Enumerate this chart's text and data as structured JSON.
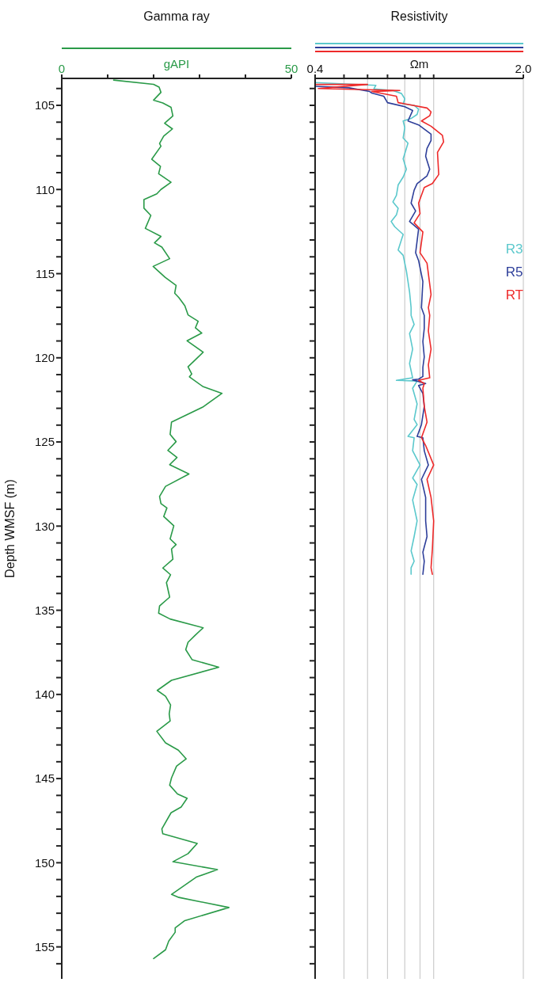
{
  "chart_data": [
    {
      "type": "line",
      "title": "Gamma ray",
      "xlabel": "gAPI",
      "ylabel": "Depth WMSF (m)",
      "orientation": "horizontal",
      "marker": "none",
      "line_style": "solid",
      "grid": false,
      "xlim": [
        0,
        50
      ],
      "xticks": [
        0,
        {
          "value": 10,
          "label": null
        },
        {
          "value": 20,
          "label": null
        },
        {
          "value": 30,
          "label": null
        },
        {
          "value": 40,
          "label": null
        },
        50
      ],
      "ylim": [
        156.9,
        103.4
      ],
      "yticks": [
        {
          "value": 104,
          "label": null
        },
        105,
        {
          "value": 106,
          "label": null
        },
        {
          "value": 107,
          "label": null
        },
        {
          "value": 108,
          "label": null
        },
        {
          "value": 109,
          "label": null
        },
        110,
        {
          "value": 111,
          "label": null
        },
        {
          "value": 112,
          "label": null
        },
        {
          "value": 113,
          "label": null
        },
        {
          "value": 114,
          "label": null
        },
        115,
        {
          "value": 116,
          "label": null
        },
        {
          "value": 117,
          "label": null
        },
        {
          "value": 118,
          "label": null
        },
        {
          "value": 119,
          "label": null
        },
        120,
        {
          "value": 121,
          "label": null
        },
        {
          "value": 122,
          "label": null
        },
        {
          "value": 123,
          "label": null
        },
        {
          "value": 124,
          "label": null
        },
        125,
        {
          "value": 126,
          "label": null
        },
        {
          "value": 127,
          "label": null
        },
        {
          "value": 128,
          "label": null
        },
        {
          "value": 129,
          "label": null
        },
        130,
        {
          "value": 131,
          "label": null
        },
        {
          "value": 132,
          "label": null
        },
        {
          "value": 133,
          "label": null
        },
        {
          "value": 134,
          "label": null
        },
        135,
        {
          "value": 136,
          "label": null
        },
        {
          "value": 137,
          "label": null
        },
        {
          "value": 138,
          "label": null
        },
        {
          "value": 139,
          "label": null
        },
        140,
        {
          "value": 141,
          "label": null
        },
        {
          "value": 142,
          "label": null
        },
        {
          "value": 143,
          "label": null
        },
        {
          "value": 144,
          "label": null
        },
        145,
        {
          "value": 146,
          "label": null
        },
        {
          "value": 147,
          "label": null
        },
        {
          "value": 148,
          "label": null
        },
        {
          "value": 149,
          "label": null
        },
        150,
        {
          "value": 151,
          "label": null
        },
        {
          "value": 152,
          "label": null
        },
        {
          "value": 153,
          "label": null
        },
        {
          "value": 154,
          "label": null
        },
        155,
        {
          "value": 156,
          "label": null
        }
      ],
      "series": [
        {
          "color": "#2a9a48",
          "x": [
            103.5,
            103.75,
            103.92,
            104.23,
            104.69,
            104.86,
            105.12,
            105.63,
            106.06,
            106.4,
            106.83,
            107.26,
            107.43,
            108.2,
            108.63,
            109.06,
            109.57,
            110.0,
            110.26,
            110.6,
            111.11,
            111.54,
            112.31,
            112.79,
            113.17,
            113.42,
            114.11,
            114.57,
            115.22,
            115.7,
            116.16,
            116.42,
            116.9,
            117.45,
            117.83,
            118.22,
            118.53,
            118.99,
            119.67,
            120.53,
            120.96,
            121.13,
            121.7,
            122.11,
            122.93,
            123.82,
            124.55,
            124.98,
            125.5,
            125.92,
            126.35,
            126.9,
            127.64,
            128.24,
            128.66,
            128.92,
            129.43,
            129.98,
            130.76,
            131.1,
            131.36,
            131.97,
            132.49,
            132.89,
            133.36,
            134.22,
            134.74,
            135.17,
            135.52,
            136.04,
            136.47,
            136.9,
            137.34,
            137.94,
            138.38,
            139.16,
            139.76,
            140.11,
            140.63,
            141.15,
            141.58,
            142.19,
            142.88,
            143.31,
            143.83,
            144.26,
            144.96,
            145.39,
            145.91,
            146.17,
            146.69,
            147.03,
            147.99,
            148.28,
            148.85,
            149.46,
            149.94,
            150.41,
            150.84,
            151.88,
            152.06,
            152.66,
            153.44,
            153.87,
            154.13,
            154.65,
            155.17,
            155.69
          ],
          "values": [
            11.3,
            20.0,
            21.2,
            21.6,
            20.0,
            22.0,
            23.8,
            24.2,
            22.4,
            24.1,
            22.2,
            21.3,
            21.6,
            19.6,
            21.5,
            21.1,
            23.8,
            21.6,
            20.7,
            17.9,
            17.9,
            19.4,
            18.2,
            21.6,
            20.2,
            21.8,
            23.5,
            19.9,
            22.5,
            24.9,
            24.6,
            25.5,
            26.8,
            27.5,
            29.7,
            29.1,
            30.5,
            27.3,
            30.8,
            27.5,
            28.3,
            27.8,
            30.7,
            34.9,
            30.7,
            23.9,
            23.6,
            24.9,
            23.1,
            25.1,
            23.5,
            27.7,
            22.6,
            21.3,
            21.6,
            22.9,
            22.2,
            24.4,
            23.6,
            24.9,
            23.9,
            24.2,
            22.0,
            23.7,
            22.8,
            23.5,
            21.3,
            21.1,
            23.6,
            30.8,
            29.1,
            27.5,
            27.0,
            28.4,
            34.2,
            23.9,
            20.8,
            22.6,
            23.7,
            23.4,
            23.6,
            20.7,
            22.6,
            25.4,
            27.1,
            25.0,
            23.9,
            23.5,
            25.2,
            27.3,
            26.0,
            23.8,
            21.8,
            22.0,
            29.5,
            27.5,
            24.2,
            33.9,
            29.4,
            23.9,
            25.5,
            36.4,
            26.8,
            24.7,
            24.7,
            23.3,
            22.6,
            20.0
          ]
        }
      ]
    },
    {
      "type": "line",
      "title": "Resistivity",
      "xlabel": "Ωm",
      "orientation": "horizontal",
      "marker": "none",
      "line_style": "solid",
      "grid": "x",
      "log": "x",
      "legend": "right",
      "tick_labels": "x",
      "xlim": [
        0.4,
        2.0
      ],
      "xticks": [
        0.4,
        {
          "value": 0.5,
          "label": null
        },
        {
          "value": 0.6,
          "label": null
        },
        {
          "value": 0.7,
          "label": null
        },
        {
          "value": 0.8,
          "label": null
        },
        {
          "value": 0.9,
          "label": null
        },
        {
          "value": 1.0,
          "label": null
        },
        {
          "value": 2.0,
          "label": "2.0"
        }
      ],
      "ylim": [
        156.9,
        103.4
      ],
      "yticks": [
        104,
        105,
        106,
        107,
        108,
        109,
        110,
        111,
        112,
        113,
        114,
        115,
        116,
        117,
        118,
        119,
        120,
        121,
        122,
        123,
        124,
        125,
        126,
        127,
        128,
        129,
        130,
        131,
        132,
        133,
        134,
        135,
        136,
        137,
        138,
        139,
        140,
        141,
        142,
        143,
        144,
        145,
        146,
        147,
        148,
        149,
        150,
        151,
        152,
        153,
        154,
        155,
        156
      ],
      "series": [
        {
          "name": "R3",
          "color": "#5bc8cc",
          "x": [
            103.65,
            103.81,
            104.02,
            104.12,
            104.3,
            104.61,
            104.92,
            105.0,
            105.23,
            105.54,
            105.78,
            105.93,
            106.32,
            106.94,
            107.25,
            107.87,
            108.18,
            108.8,
            109.26,
            109.73,
            110.35,
            110.74,
            111.12,
            111.51,
            111.9,
            112.21,
            112.67,
            113.6,
            113.91,
            114.84,
            116.09,
            117.02,
            117.48,
            118.02,
            118.56,
            119.49,
            120.34,
            121.19,
            121.34,
            121.38,
            121.81,
            122.74,
            123.66,
            123.97,
            124.67,
            124.75,
            125.52,
            126.37,
            127.14,
            127.53,
            128.45,
            129.69,
            130.62,
            131.47,
            132.09,
            132.47,
            132.86
          ],
          "values": [
            0.4,
            0.64,
            0.63,
            0.73,
            0.78,
            0.8,
            0.79,
            0.86,
            0.89,
            0.88,
            0.84,
            0.79,
            0.8,
            0.79,
            0.82,
            0.8,
            0.79,
            0.81,
            0.79,
            0.76,
            0.75,
            0.73,
            0.76,
            0.75,
            0.72,
            0.74,
            0.79,
            0.76,
            0.79,
            0.81,
            0.83,
            0.84,
            0.84,
            0.86,
            0.83,
            0.85,
            0.83,
            0.85,
            0.75,
            0.88,
            0.85,
            0.88,
            0.86,
            0.88,
            0.82,
            0.86,
            0.85,
            0.9,
            0.85,
            0.88,
            0.85,
            0.88,
            0.86,
            0.84,
            0.86,
            0.84,
            0.84
          ]
        },
        {
          "name": "R5",
          "color": "#2e3f9a",
          "x": [
            103.87,
            103.96,
            104.18,
            104.27,
            104.46,
            104.84,
            105.08,
            105.31,
            105.93,
            106.16,
            106.71,
            107.09,
            107.56,
            108.02,
            108.8,
            109.19,
            109.65,
            110.04,
            110.81,
            111.28,
            111.9,
            112.36,
            113.76,
            114.22,
            115.47,
            117.02,
            117.48,
            118.25,
            119.03,
            119.95,
            120.57,
            121.11,
            121.27,
            121.31,
            121.53,
            121.65,
            122.12,
            122.89,
            123.97,
            124.67,
            124.75,
            125.52,
            126.37,
            127.22,
            128.3,
            129.69,
            130.62,
            131.55,
            132.09,
            132.86
          ],
          "values": [
            0.4,
            0.52,
            0.61,
            0.62,
            0.68,
            0.7,
            0.8,
            0.85,
            0.82,
            0.89,
            0.98,
            0.98,
            0.95,
            0.94,
            0.97,
            0.95,
            0.88,
            0.86,
            0.84,
            0.87,
            0.83,
            0.89,
            0.87,
            0.89,
            0.92,
            0.91,
            0.93,
            0.93,
            0.92,
            0.93,
            0.92,
            0.92,
            0.89,
            0.85,
            0.94,
            0.89,
            0.92,
            0.93,
            0.91,
            0.88,
            0.92,
            0.93,
            0.96,
            0.91,
            0.94,
            0.94,
            0.95,
            0.92,
            0.93,
            0.92
          ]
        },
        {
          "name": "RT",
          "color": "#ee2a2a",
          "x": [
            103.76,
            103.76,
            104.0,
            104.12,
            104.18,
            104.46,
            104.84,
            105.16,
            105.39,
            105.62,
            105.93,
            106.24,
            106.78,
            107.17,
            107.79,
            109.11,
            109.65,
            109.88,
            110.81,
            111.43,
            111.98,
            112.52,
            113.76,
            114.38,
            116.24,
            117.02,
            117.48,
            118.41,
            119.49,
            120.42,
            121.19,
            121.34,
            121.53,
            121.81,
            122.89,
            123.82,
            124.75,
            125.21,
            126.37,
            127.22,
            128.3,
            129.69,
            131.39,
            132.47,
            132.86
          ],
          "values": [
            0.4,
            0.6,
            0.41,
            0.77,
            0.62,
            0.75,
            0.76,
            0.95,
            0.98,
            0.97,
            0.91,
            0.98,
            1.07,
            1.08,
            1.03,
            1.04,
            0.99,
            0.93,
            0.89,
            0.9,
            0.86,
            0.92,
            0.9,
            0.95,
            0.98,
            0.96,
            0.97,
            0.96,
            0.98,
            0.96,
            0.97,
            0.89,
            0.93,
            0.92,
            0.93,
            0.95,
            0.91,
            0.94,
            1.0,
            0.95,
            0.98,
            1.0,
            0.99,
            0.98,
            0.99
          ]
        }
      ]
    }
  ]
}
